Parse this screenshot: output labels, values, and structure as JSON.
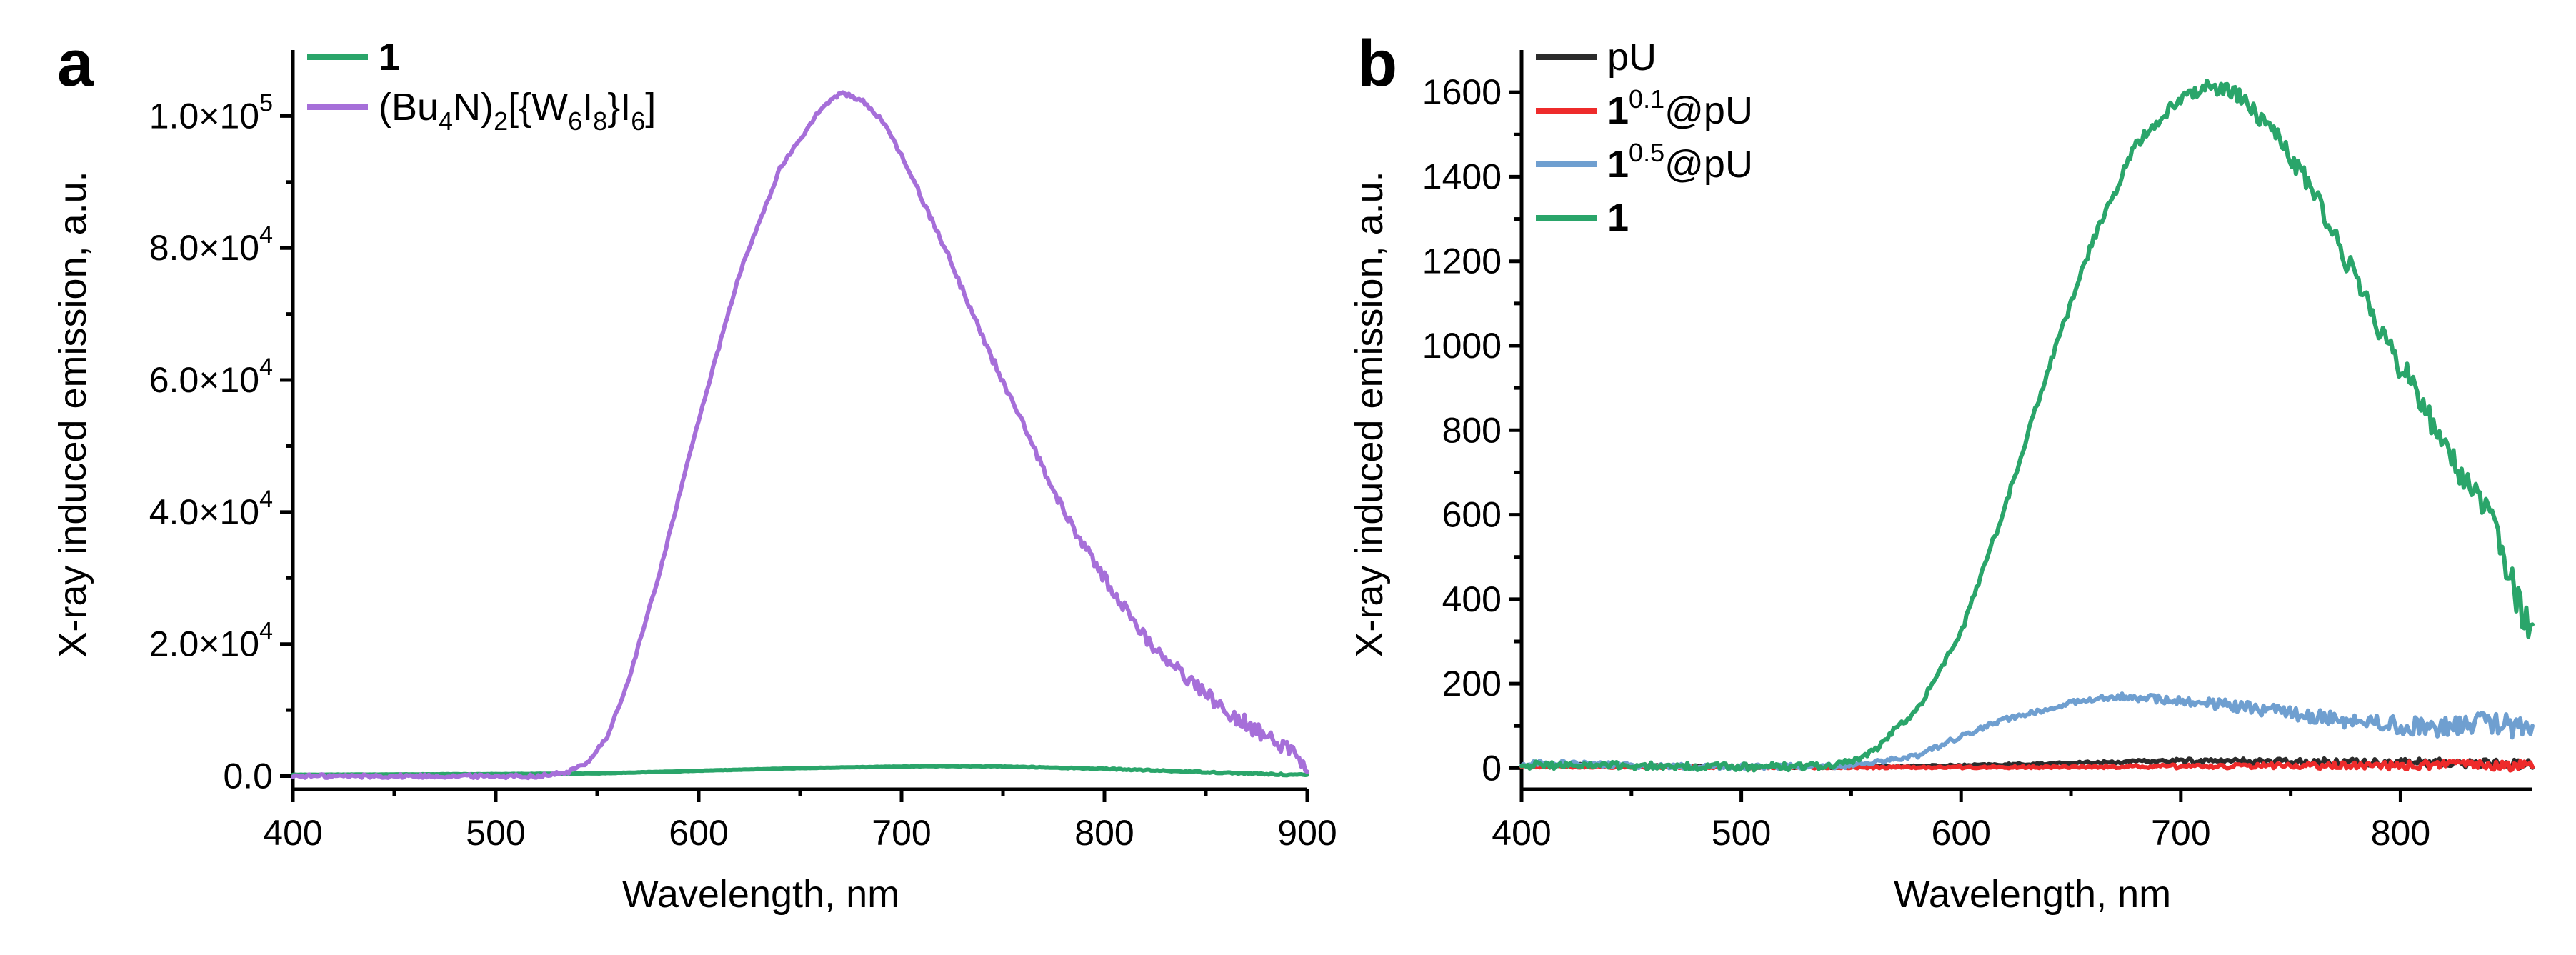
{
  "colors": {
    "black": "#2b2b2b",
    "red": "#ee2b2b",
    "blue": "#6f9fd0",
    "green": "#2aa56a",
    "purple": "#a66fd9"
  },
  "chart_data": [
    {
      "panel": "a",
      "type": "line",
      "title": "",
      "xlabel": "Wavelength, nm",
      "ylabel": "X-ray induced emission, a.u.",
      "xlim": [
        400,
        900
      ],
      "ylim": [
        -2000,
        110000
      ],
      "xticks": [
        400,
        500,
        600,
        700,
        800,
        900
      ],
      "yticks": [
        0,
        20000,
        40000,
        60000,
        80000,
        100000
      ],
      "ytick_labels": [
        {
          "value": 0,
          "mantissa": "0.0",
          "exp": ""
        },
        {
          "value": 20000,
          "mantissa": "2.0×10",
          "exp": "4"
        },
        {
          "value": 40000,
          "mantissa": "4.0×10",
          "exp": "4"
        },
        {
          "value": 60000,
          "mantissa": "6.0×10",
          "exp": "4"
        },
        {
          "value": 80000,
          "mantissa": "8.0×10",
          "exp": "4"
        },
        {
          "value": 100000,
          "mantissa": "1.0×10",
          "exp": "5"
        }
      ],
      "legend_position": "top-left",
      "series": [
        {
          "name": "1",
          "legend_parts": [
            {
              "t": "1",
              "b": true
            }
          ],
          "color": "#2aa56a",
          "noise": 60,
          "x": [
            400,
            500,
            550,
            600,
            650,
            700,
            720,
            750,
            800,
            850,
            880,
            900
          ],
          "y": [
            200,
            300,
            400,
            800,
            1200,
            1450,
            1500,
            1450,
            1100,
            600,
            300,
            150
          ]
        },
        {
          "name": "(Bu4N)2[{W6I8}I6]",
          "legend_parts": [
            {
              "t": "(Bu"
            },
            {
              "t": "4",
              "sub": true
            },
            {
              "t": "N)"
            },
            {
              "t": "2",
              "sub": true
            },
            {
              "t": "[{W"
            },
            {
              "t": "6",
              "sub": true
            },
            {
              "t": "I"
            },
            {
              "t": "8",
              "sub": true
            },
            {
              "t": "}I"
            },
            {
              "t": "6",
              "sub": true
            },
            {
              "t": "]"
            }
          ],
          "color": "#a66fd9",
          "noise": 700,
          "x": [
            400,
            520,
            535,
            545,
            555,
            565,
            580,
            600,
            620,
            640,
            660,
            670,
            680,
            690,
            700,
            720,
            740,
            760,
            780,
            800,
            820,
            840,
            860,
            870,
            880,
            890,
            900
          ],
          "y": [
            0,
            0,
            500,
            2000,
            6000,
            14000,
            30000,
            54000,
            76000,
            92000,
            101000,
            103500,
            102500,
            99500,
            94000,
            81000,
            66500,
            53000,
            40000,
            30000,
            21000,
            15000,
            10000,
            8000,
            6000,
            4000,
            2000
          ]
        }
      ]
    },
    {
      "panel": "b",
      "type": "line",
      "title": "",
      "xlabel": "Wavelength, nm",
      "ylabel": "X-ray induced emission, a.u.",
      "xlim": [
        400,
        860
      ],
      "ylim": [
        -50,
        1700
      ],
      "xticks": [
        400,
        500,
        600,
        700,
        800
      ],
      "yticks": [
        0,
        200,
        400,
        600,
        800,
        1000,
        1200,
        1400,
        1600
      ],
      "ytick_labels": [
        {
          "value": 0,
          "mantissa": "0",
          "exp": ""
        },
        {
          "value": 200,
          "mantissa": "200",
          "exp": ""
        },
        {
          "value": 400,
          "mantissa": "400",
          "exp": ""
        },
        {
          "value": 600,
          "mantissa": "600",
          "exp": ""
        },
        {
          "value": 800,
          "mantissa": "800",
          "exp": ""
        },
        {
          "value": 1000,
          "mantissa": "1000",
          "exp": ""
        },
        {
          "value": 1200,
          "mantissa": "1200",
          "exp": ""
        },
        {
          "value": 1400,
          "mantissa": "1400",
          "exp": ""
        },
        {
          "value": 1600,
          "mantissa": "1600",
          "exp": ""
        }
      ],
      "legend_position": "top-left",
      "series": [
        {
          "name": "pU",
          "legend_parts": [
            {
              "t": "pU"
            }
          ],
          "color": "#2b2b2b",
          "noise": 6,
          "x": [
            400,
            420,
            500,
            550,
            600,
            650,
            700,
            750,
            800,
            830,
            860
          ],
          "y": [
            5,
            8,
            3,
            3,
            6,
            12,
            18,
            16,
            14,
            12,
            10
          ]
        },
        {
          "name": "1^0.1@pU",
          "legend_parts": [
            {
              "t": "1",
              "b": true
            },
            {
              "t": "0.1",
              "sup": true
            },
            {
              "t": "@pU"
            }
          ],
          "color": "#ee2b2b",
          "noise": 6,
          "x": [
            400,
            500,
            600,
            700,
            780,
            800,
            820,
            840,
            860
          ],
          "y": [
            4,
            2,
            2,
            4,
            6,
            6,
            8,
            6,
            5
          ]
        },
        {
          "name": "1^0.5@pU",
          "legend_parts": [
            {
              "t": "1",
              "b": true
            },
            {
              "t": "0.5",
              "sup": true
            },
            {
              "t": "@pU"
            }
          ],
          "color": "#6f9fd0",
          "noise": 14,
          "x": [
            400,
            410,
            450,
            500,
            550,
            580,
            600,
            620,
            650,
            670,
            700,
            720,
            750,
            780,
            800,
            820,
            840,
            860
          ],
          "y": [
            8,
            14,
            6,
            3,
            5,
            30,
            75,
            115,
            155,
            170,
            160,
            150,
            130,
            110,
            100,
            95,
            110,
            90
          ]
        },
        {
          "name": "1",
          "legend_parts": [
            {
              "t": "1",
              "b": true
            }
          ],
          "color": "#2aa56a",
          "noise": 22,
          "x": [
            400,
            500,
            540,
            550,
            560,
            580,
            600,
            620,
            640,
            660,
            680,
            700,
            710,
            720,
            730,
            740,
            760,
            780,
            800,
            820,
            840,
            850,
            860
          ],
          "y": [
            8,
            3,
            5,
            15,
            40,
            140,
            320,
            620,
            950,
            1250,
            1480,
            1590,
            1610,
            1610,
            1580,
            1520,
            1370,
            1150,
            950,
            770,
            600,
            450,
            300
          ]
        }
      ]
    }
  ],
  "panels": [
    {
      "letter": "a",
      "xlabel": "Wavelength, nm",
      "ylabel": "X-ray induced emission, a.u."
    },
    {
      "letter": "b",
      "xlabel": "Wavelength, nm",
      "ylabel": "X-ray induced emission, a.u."
    }
  ]
}
